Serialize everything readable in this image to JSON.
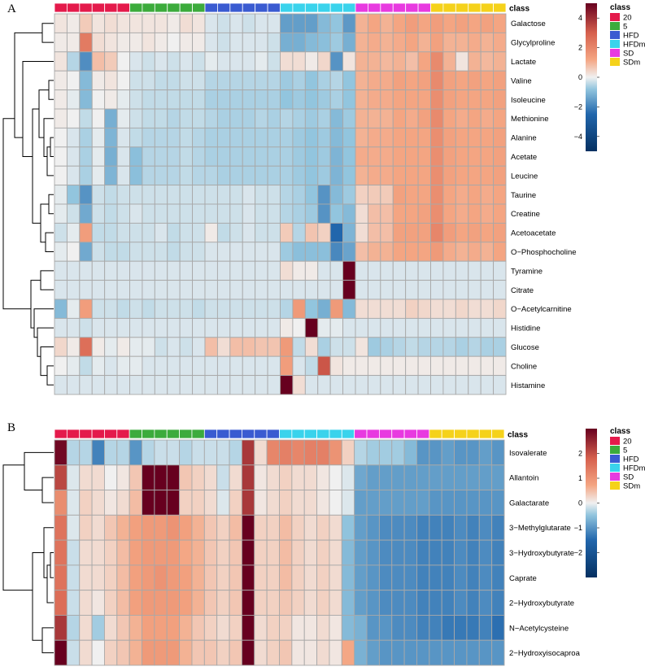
{
  "classes": [
    {
      "name": "20",
      "color": "#e41a4b"
    },
    {
      "name": "5",
      "color": "#3cab3c"
    },
    {
      "name": "HFD",
      "color": "#3a5bd1"
    },
    {
      "name": "HFDm",
      "color": "#3ad3ec"
    },
    {
      "name": "SD",
      "color": "#e83ae0"
    },
    {
      "name": "SDm",
      "color": "#f5d21b"
    }
  ],
  "chart_data": [
    {
      "type": "heatmap",
      "panel": "A",
      "annotation_title": "class",
      "legend_title": "class",
      "column_classes": [
        "20",
        "20",
        "20",
        "20",
        "20",
        "20",
        "5",
        "5",
        "5",
        "5",
        "5",
        "5",
        "HFD",
        "HFD",
        "HFD",
        "HFD",
        "HFD",
        "HFD",
        "HFDm",
        "HFDm",
        "HFDm",
        "HFDm",
        "HFDm",
        "HFDm",
        "SD",
        "SD",
        "SD",
        "SD",
        "SD",
        "SD",
        "SDm",
        "SDm",
        "SDm",
        "SDm",
        "SDm",
        "SDm"
      ],
      "rows": [
        "Galactose",
        "Glycylproline",
        "Lactate",
        "Valine",
        "Isoleucine",
        "Methionine",
        "Alanine",
        "Acetate",
        "Leucine",
        "Taurine",
        "Creatine",
        "Acetoacetate",
        "O−Phosphocholine",
        "Tyramine",
        "Citrate",
        "O−Acetylcarnitine",
        "Histidine",
        "Glucose",
        "Choline",
        "Histamine"
      ],
      "values": [
        [
          0.2,
          0.1,
          0.6,
          0.2,
          0.3,
          0.2,
          0.2,
          0.2,
          0.2,
          0.1,
          0.3,
          0.2,
          -0.2,
          -0.3,
          -0.2,
          -0.3,
          -0.2,
          -0.2,
          -1.5,
          -1.5,
          -1.5,
          -1.0,
          -0.8,
          -1.6,
          1.0,
          1.2,
          1.0,
          1.2,
          1.4,
          1.2,
          1.4,
          1.2,
          1.3,
          1.2,
          1.3,
          1.2
        ],
        [
          0.1,
          0.1,
          2.3,
          0.3,
          0.2,
          0.1,
          0.1,
          0.2,
          0.1,
          0.0,
          0.1,
          0.1,
          -0.2,
          -0.3,
          -0.2,
          -0.2,
          -0.2,
          -0.3,
          -1.2,
          -1.2,
          -1.0,
          -0.9,
          -0.7,
          -1.2,
          1.0,
          1.1,
          1.0,
          1.1,
          1.2,
          1.0,
          1.3,
          1.0,
          1.0,
          1.1,
          1.0,
          1.1
        ],
        [
          0.2,
          -0.5,
          -1.8,
          0.8,
          0.6,
          0.0,
          -0.2,
          -0.3,
          -0.2,
          -0.3,
          -0.2,
          -0.3,
          -0.1,
          -0.2,
          -0.2,
          -0.2,
          -0.1,
          -0.3,
          0.3,
          0.3,
          0.1,
          0.4,
          -1.7,
          0.2,
          1.0,
          1.0,
          0.9,
          1.0,
          0.8,
          1.2,
          1.9,
          1.0,
          0.2,
          1.0,
          0.9,
          1.0
        ],
        [
          0.1,
          0.0,
          -1.0,
          0.1,
          0.2,
          0.0,
          -0.3,
          -0.3,
          -0.4,
          -0.4,
          -0.3,
          -0.3,
          -0.5,
          -0.5,
          -0.5,
          -0.5,
          -0.5,
          -0.5,
          -0.7,
          -0.6,
          -0.8,
          -0.6,
          -0.5,
          -0.8,
          1.0,
          1.1,
          1.1,
          1.3,
          1.2,
          1.3,
          1.9,
          1.3,
          1.2,
          1.3,
          1.2,
          1.3
        ],
        [
          0.1,
          -0.1,
          -1.0,
          0.0,
          0.1,
          -0.1,
          -0.3,
          -0.4,
          -0.4,
          -0.4,
          -0.4,
          -0.4,
          -0.6,
          -0.6,
          -0.6,
          -0.6,
          -0.6,
          -0.6,
          -0.8,
          -0.7,
          -0.8,
          -0.7,
          -0.6,
          -0.8,
          1.0,
          1.1,
          1.1,
          1.2,
          1.2,
          1.2,
          1.8,
          1.3,
          1.2,
          1.2,
          1.2,
          1.3
        ],
        [
          0.1,
          0.0,
          -0.4,
          0.0,
          -1.2,
          -0.1,
          -0.3,
          -0.4,
          -0.4,
          -0.5,
          -0.4,
          -0.4,
          -0.5,
          -0.6,
          -0.6,
          -0.6,
          -0.5,
          -0.6,
          -0.5,
          -0.6,
          -0.7,
          -0.6,
          -1.0,
          -0.7,
          1.0,
          1.0,
          1.0,
          1.2,
          1.1,
          1.3,
          1.9,
          1.2,
          1.1,
          1.2,
          1.1,
          1.2
        ],
        [
          0.0,
          -0.2,
          -0.6,
          -0.1,
          -1.1,
          -0.2,
          -0.4,
          -0.5,
          -0.5,
          -0.5,
          -0.4,
          -0.5,
          -0.6,
          -0.6,
          -0.6,
          -0.6,
          -0.6,
          -0.6,
          -0.6,
          -0.7,
          -0.8,
          -0.7,
          -1.0,
          -0.8,
          1.0,
          1.1,
          1.1,
          1.2,
          1.2,
          1.2,
          1.8,
          1.3,
          1.2,
          1.2,
          1.2,
          1.3
        ],
        [
          0.0,
          -0.2,
          -0.6,
          -0.1,
          -1.2,
          -0.2,
          -0.9,
          -0.5,
          -0.5,
          -0.5,
          -0.4,
          -0.5,
          -0.6,
          -0.6,
          -0.6,
          -0.6,
          -0.6,
          -0.6,
          -0.6,
          -0.7,
          -0.8,
          -0.7,
          -1.1,
          -0.8,
          1.1,
          1.1,
          1.1,
          1.2,
          1.2,
          1.2,
          1.8,
          1.3,
          1.2,
          1.2,
          1.2,
          1.3
        ],
        [
          0.0,
          -0.2,
          -0.6,
          -0.1,
          -1.1,
          -0.2,
          -0.9,
          -0.5,
          -0.5,
          -0.5,
          -0.4,
          -0.5,
          -0.5,
          -0.6,
          -0.6,
          -0.6,
          -0.6,
          -0.6,
          -0.6,
          -0.7,
          -0.8,
          -0.7,
          -1.1,
          -0.8,
          1.0,
          1.1,
          1.1,
          1.2,
          1.2,
          1.2,
          1.8,
          1.3,
          1.2,
          1.2,
          1.2,
          1.3
        ],
        [
          -0.1,
          -0.8,
          -1.7,
          -0.3,
          -0.4,
          -0.3,
          -0.3,
          -0.3,
          -0.3,
          -0.3,
          -0.3,
          -0.3,
          -0.3,
          -0.3,
          -0.3,
          -0.2,
          -0.3,
          -0.3,
          -0.5,
          -0.6,
          -0.8,
          -1.7,
          -1.0,
          -0.7,
          0.5,
          0.6,
          0.6,
          1.3,
          1.2,
          1.2,
          1.8,
          1.2,
          1.1,
          1.2,
          1.1,
          1.2
        ],
        [
          -0.1,
          -0.3,
          -1.3,
          -0.3,
          -0.4,
          -0.3,
          -0.2,
          -0.3,
          -0.3,
          -0.3,
          -0.3,
          -0.3,
          -0.3,
          -0.3,
          -0.3,
          -0.2,
          -0.3,
          -0.3,
          -0.5,
          -0.6,
          -0.7,
          -1.7,
          -0.8,
          -1.0,
          0.3,
          0.8,
          0.8,
          1.2,
          1.2,
          1.3,
          1.8,
          1.2,
          1.1,
          1.2,
          1.1,
          1.2
        ],
        [
          -0.3,
          -0.1,
          1.4,
          -0.4,
          -0.4,
          -0.3,
          -0.3,
          -0.3,
          -0.2,
          -0.4,
          -0.3,
          -0.3,
          0.1,
          -0.4,
          -0.3,
          -0.2,
          -0.3,
          -0.3,
          0.6,
          -0.5,
          0.7,
          0.5,
          -2.5,
          -1.1,
          0.3,
          0.8,
          0.8,
          1.3,
          1.3,
          1.3,
          2.0,
          1.4,
          1.2,
          1.3,
          1.2,
          1.3
        ],
        [
          -0.1,
          0.0,
          -1.3,
          -0.3,
          -0.4,
          -0.4,
          -0.3,
          -0.3,
          -0.3,
          -0.4,
          -0.3,
          -0.3,
          -0.2,
          -0.2,
          -0.2,
          -0.2,
          -0.2,
          -0.2,
          -0.7,
          -0.9,
          -0.9,
          -0.9,
          -1.9,
          -1.4,
          0.8,
          1.0,
          1.0,
          1.2,
          1.2,
          1.2,
          1.5,
          1.1,
          1.0,
          1.1,
          1.0,
          1.2
        ],
        [
          -0.2,
          -0.2,
          -0.2,
          -0.2,
          -0.2,
          -0.2,
          -0.2,
          -0.2,
          -0.2,
          -0.2,
          -0.2,
          -0.2,
          -0.2,
          -0.2,
          -0.2,
          -0.2,
          -0.2,
          -0.2,
          0.3,
          0.1,
          0.1,
          -0.2,
          -0.2,
          5.0,
          -0.2,
          -0.2,
          -0.2,
          -0.2,
          -0.2,
          -0.2,
          -0.2,
          -0.2,
          -0.2,
          -0.2,
          -0.2,
          -0.2
        ],
        [
          -0.2,
          -0.2,
          -0.2,
          -0.2,
          -0.2,
          -0.2,
          -0.2,
          -0.2,
          -0.2,
          -0.2,
          -0.2,
          -0.2,
          -0.2,
          -0.2,
          -0.2,
          -0.2,
          -0.2,
          -0.2,
          -0.2,
          -0.2,
          -0.2,
          -0.2,
          -0.2,
          5.0,
          -0.2,
          -0.2,
          -0.2,
          -0.2,
          -0.2,
          -0.2,
          -0.2,
          -0.2,
          -0.2,
          -0.2,
          -0.2,
          -0.2
        ],
        [
          -1.0,
          -0.1,
          1.4,
          -0.3,
          -0.3,
          -0.4,
          -0.3,
          -0.4,
          -0.3,
          -0.3,
          -0.3,
          -0.4,
          -0.3,
          -0.3,
          -0.3,
          -0.3,
          -0.3,
          -0.3,
          -0.5,
          1.5,
          -0.8,
          -1.2,
          1.5,
          -1.0,
          0.3,
          0.3,
          0.3,
          0.3,
          0.5,
          0.4,
          0.3,
          0.3,
          0.4,
          0.3,
          0.3,
          0.4
        ],
        [
          -0.2,
          -0.2,
          -0.3,
          -0.2,
          -0.2,
          -0.2,
          -0.2,
          -0.2,
          -0.2,
          -0.2,
          -0.2,
          -0.2,
          -0.2,
          -0.2,
          -0.2,
          -0.2,
          -0.2,
          -0.2,
          0.1,
          0.0,
          5.0,
          -0.1,
          -0.1,
          -0.2,
          -0.2,
          -0.2,
          -0.2,
          -0.2,
          -0.2,
          -0.2,
          -0.2,
          -0.2,
          -0.2,
          -0.2,
          -0.2,
          -0.2
        ],
        [
          0.4,
          0.1,
          2.6,
          0.1,
          -0.1,
          0.1,
          -0.1,
          -0.1,
          -0.3,
          -0.2,
          -0.3,
          -0.2,
          0.8,
          0.3,
          0.8,
          0.8,
          0.7,
          0.7,
          1.5,
          -0.4,
          0.3,
          -0.6,
          -0.3,
          -0.3,
          0.2,
          -0.7,
          -0.6,
          -0.5,
          -0.4,
          -0.5,
          -0.5,
          -0.5,
          -0.6,
          -0.5,
          -0.6,
          -0.6
        ],
        [
          0.0,
          -0.1,
          -0.4,
          -0.1,
          -0.2,
          -0.1,
          -0.1,
          -0.2,
          -0.2,
          -0.2,
          -0.2,
          -0.2,
          -0.2,
          -0.2,
          -0.2,
          -0.2,
          -0.2,
          -0.2,
          1.4,
          -0.2,
          -0.4,
          3.2,
          0.2,
          0.1,
          0.1,
          0.1,
          0.1,
          0.1,
          0.1,
          0.1,
          0.1,
          0.1,
          0.1,
          0.1,
          0.1,
          0.1
        ],
        [
          -0.2,
          -0.2,
          -0.2,
          -0.2,
          -0.2,
          -0.2,
          -0.2,
          -0.2,
          -0.2,
          -0.2,
          -0.2,
          -0.2,
          -0.2,
          -0.2,
          -0.2,
          -0.2,
          -0.2,
          -0.2,
          5.0,
          0.3,
          -0.2,
          -0.2,
          -0.2,
          -0.2,
          -0.2,
          -0.2,
          -0.2,
          -0.2,
          -0.2,
          -0.2,
          -0.2,
          -0.2,
          -0.2,
          -0.2,
          -0.2,
          -0.2
        ]
      ],
      "color_range": [
        -5,
        5
      ],
      "colorbar_ticks": [
        4,
        2,
        0,
        -2,
        -4
      ]
    },
    {
      "type": "heatmap",
      "panel": "B",
      "annotation_title": "class",
      "legend_title": "class",
      "column_classes": [
        "20",
        "20",
        "20",
        "20",
        "20",
        "20",
        "5",
        "5",
        "5",
        "5",
        "5",
        "5",
        "HFD",
        "HFD",
        "HFD",
        "HFD",
        "HFD",
        "HFD",
        "HFDm",
        "HFDm",
        "HFDm",
        "HFDm",
        "HFDm",
        "HFDm",
        "SD",
        "SD",
        "SD",
        "SD",
        "SD",
        "SD",
        "SDm",
        "SDm",
        "SDm",
        "SDm",
        "SDm",
        "SDm"
      ],
      "rows": [
        "Isovalerate",
        "Allantoin",
        "Galactarate",
        "3−Methylglutarate",
        "3−Hydroxybutyrate",
        "Caprate",
        "2−Hydroxybutyrate",
        "N−Acetylcysteine",
        "2−Hydroxyisocaproa"
      ],
      "values": [
        [
          2.9,
          -0.3,
          -0.3,
          -1.2,
          -0.3,
          -0.3,
          -1.0,
          -0.3,
          -0.2,
          -0.2,
          -0.3,
          -0.2,
          -0.2,
          -0.2,
          -0.3,
          2.3,
          0.2,
          1.2,
          1.3,
          1.2,
          1.3,
          1.3,
          1.0,
          0.3,
          -0.3,
          -0.4,
          -0.4,
          -0.4,
          -0.6,
          -1.0,
          -1.0,
          -0.9,
          -1.0,
          -1.0,
          -0.9,
          -1.0
        ],
        [
          2.1,
          -0.1,
          0.2,
          0.2,
          0.0,
          0.1,
          0.4,
          3.0,
          3.0,
          3.0,
          0.4,
          0.3,
          0.2,
          -0.2,
          0.2,
          2.3,
          0.1,
          0.2,
          0.3,
          0.2,
          0.2,
          0.1,
          0.0,
          -0.1,
          -0.8,
          -0.9,
          -0.9,
          -0.9,
          -0.9,
          -0.9,
          -0.9,
          -0.9,
          -0.9,
          -0.9,
          -0.9,
          -0.9
        ],
        [
          1.1,
          -0.1,
          0.3,
          0.2,
          0.1,
          0.2,
          0.5,
          3.0,
          3.0,
          3.0,
          0.3,
          0.3,
          0.2,
          -0.1,
          0.3,
          2.3,
          0.1,
          0.2,
          0.3,
          0.2,
          0.2,
          0.1,
          0.0,
          -0.1,
          -0.9,
          -0.9,
          -0.9,
          -0.9,
          -0.9,
          -0.9,
          -1.0,
          -1.0,
          -1.0,
          -1.0,
          -1.0,
          -1.0
        ],
        [
          1.5,
          -0.1,
          0.3,
          0.2,
          0.4,
          0.6,
          0.8,
          0.9,
          0.9,
          1.0,
          0.8,
          0.6,
          0.4,
          0.3,
          0.5,
          3.0,
          0.3,
          0.3,
          0.5,
          0.3,
          0.2,
          0.3,
          0.2,
          -0.5,
          -0.9,
          -1.0,
          -1.1,
          -1.1,
          -1.1,
          -1.2,
          -1.2,
          -1.2,
          -1.1,
          -1.2,
          -1.1,
          -1.2
        ],
        [
          1.5,
          -0.2,
          0.2,
          0.2,
          0.3,
          0.5,
          0.8,
          0.9,
          0.9,
          0.9,
          0.7,
          0.6,
          0.4,
          0.3,
          0.4,
          3.0,
          0.3,
          0.3,
          0.5,
          0.3,
          0.2,
          0.3,
          0.2,
          -0.6,
          -0.9,
          -1.0,
          -1.1,
          -1.1,
          -1.1,
          -1.2,
          -1.2,
          -1.2,
          -1.1,
          -1.2,
          -1.1,
          -1.2
        ],
        [
          1.5,
          -0.2,
          0.2,
          0.2,
          0.3,
          0.5,
          0.8,
          0.9,
          1.0,
          0.9,
          0.8,
          0.6,
          0.4,
          0.3,
          0.4,
          3.0,
          0.3,
          0.3,
          0.5,
          0.3,
          0.2,
          0.3,
          0.2,
          -0.6,
          -0.9,
          -1.0,
          -1.1,
          -1.1,
          -1.1,
          -1.2,
          -1.2,
          -1.2,
          -1.1,
          -1.2,
          -1.1,
          -1.2
        ],
        [
          1.6,
          -0.2,
          0.2,
          0.1,
          0.3,
          0.5,
          0.8,
          0.9,
          0.9,
          0.9,
          0.8,
          0.6,
          0.4,
          0.3,
          0.4,
          3.0,
          0.3,
          0.3,
          0.4,
          0.3,
          0.2,
          0.3,
          0.2,
          -0.6,
          -0.9,
          -1.0,
          -1.1,
          -1.1,
          -1.1,
          -1.2,
          -1.2,
          -1.2,
          -1.1,
          -1.2,
          -1.1,
          -1.2
        ],
        [
          2.3,
          -0.3,
          0.2,
          -0.4,
          0.2,
          0.4,
          0.6,
          0.8,
          0.8,
          0.8,
          0.6,
          0.4,
          0.3,
          0.2,
          0.3,
          3.0,
          0.2,
          0.3,
          0.3,
          0.1,
          0.1,
          0.2,
          0.1,
          -0.6,
          -0.7,
          -1.0,
          -1.0,
          -1.1,
          -1.1,
          -1.2,
          -1.2,
          -1.3,
          -1.3,
          -1.3,
          -1.2,
          -1.4
        ],
        [
          3.0,
          -0.2,
          0.2,
          0.0,
          0.3,
          0.4,
          0.6,
          0.9,
          0.9,
          0.9,
          0.6,
          0.4,
          0.4,
          0.3,
          0.4,
          3.0,
          0.2,
          0.3,
          0.4,
          0.1,
          0.1,
          0.2,
          0.1,
          0.7,
          -0.7,
          -0.9,
          -1.0,
          -1.0,
          -1.0,
          -1.0,
          -1.0,
          -1.0,
          -1.0,
          -1.0,
          -1.0,
          -1.0
        ]
      ],
      "color_range": [
        -3,
        3
      ],
      "colorbar_ticks": [
        2,
        1,
        0,
        -1,
        -2
      ]
    }
  ]
}
